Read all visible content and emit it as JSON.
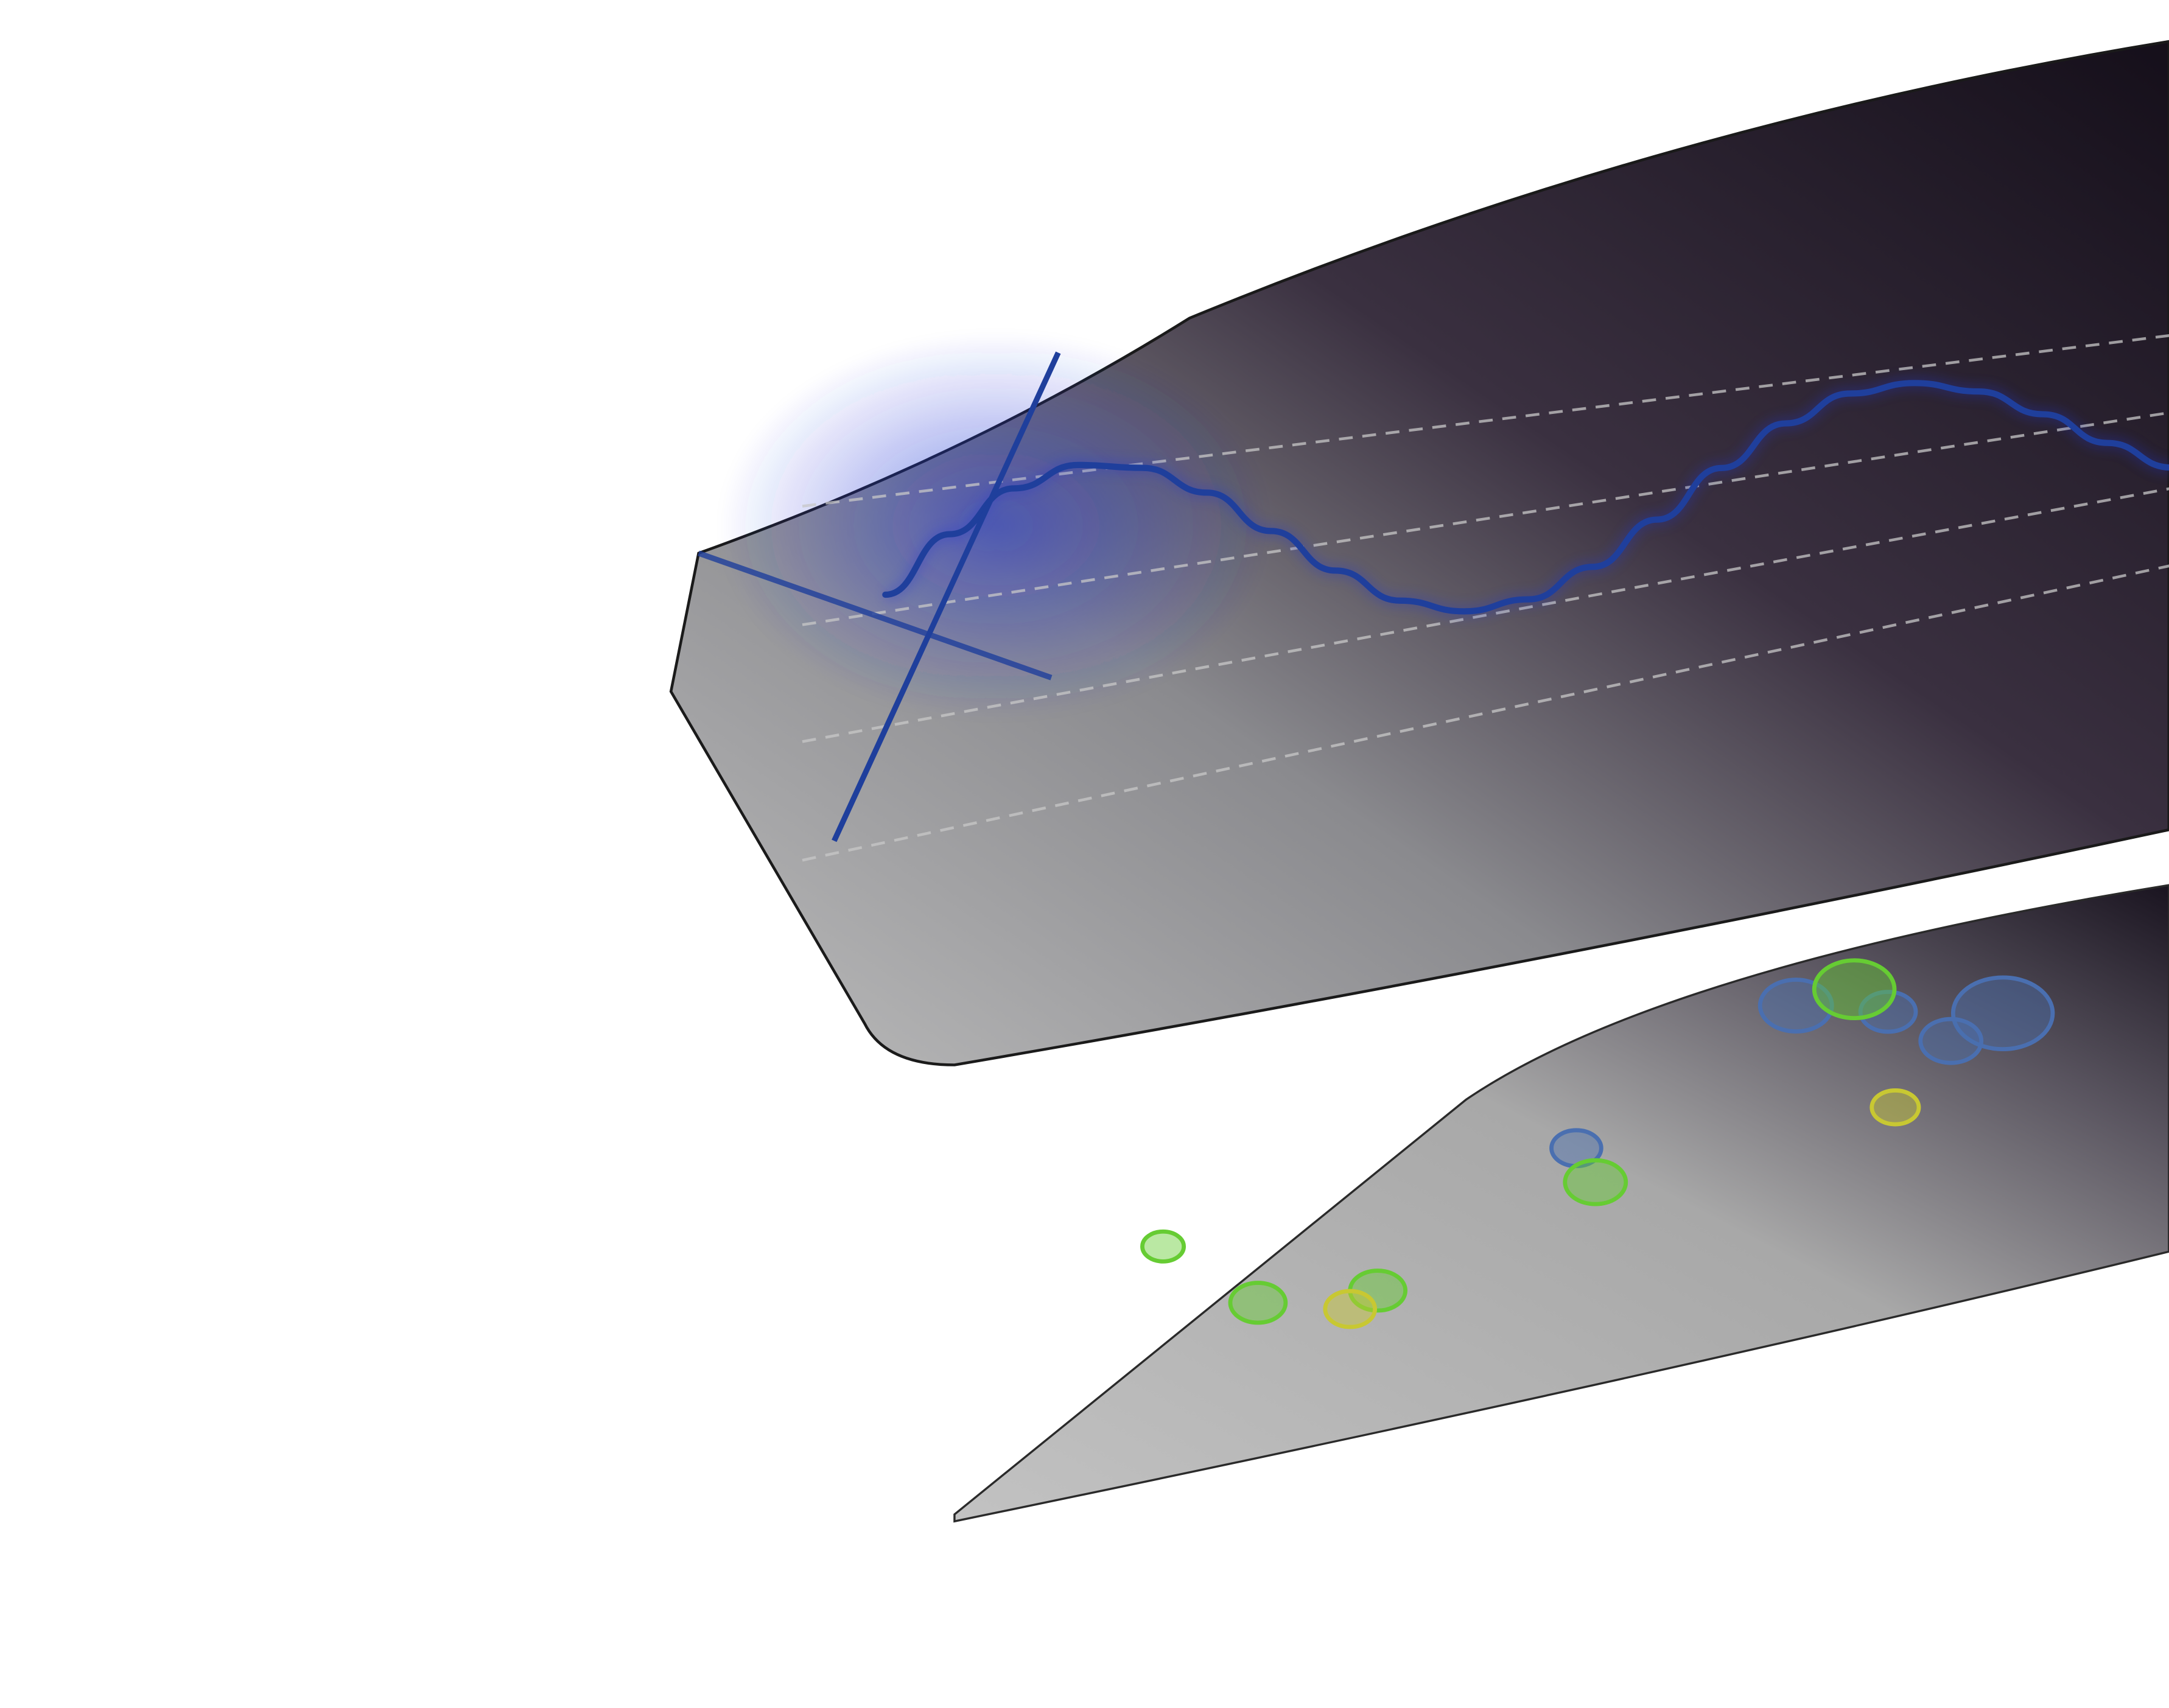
{
  "scene": {
    "description_free": true,
    "background": "#ffffff"
  },
  "colors": {
    "line": "#1f3f9c",
    "line_glow": "#2436d6",
    "grid": "#c8c8c8",
    "panel_dark": "#1a1420",
    "panel_light": "#b4b4b4",
    "bubble_blue": "#4a6fb0",
    "bubble_green": "#66cc33",
    "bubble_yellow": "#c8c832"
  },
  "chart_data": [
    {
      "type": "line",
      "title": "",
      "xlabel": "",
      "ylabel": "",
      "grid": true,
      "grid_style": "dashed",
      "series": [
        {
          "x": [
            0,
            0.5,
            1,
            1.5,
            2,
            2.5,
            3,
            3.5,
            4,
            4.5,
            5,
            5.5,
            6,
            6.5,
            7,
            7.5,
            8,
            8.5,
            9,
            9.5,
            10
          ],
          "y": [
            0.0,
            0.48,
            0.84,
            1.0,
            0.91,
            0.6,
            0.14,
            -0.35,
            -0.76,
            -0.98,
            -0.96,
            -0.71,
            -0.28,
            0.22,
            0.66,
            0.94,
            0.99,
            0.8,
            0.41,
            -0.08,
            -0.54
          ]
        }
      ]
    },
    {
      "type": "scatter",
      "title": "",
      "xlabel": "",
      "ylabel": "",
      "grid": false,
      "series": [
        {
          "color": "blue",
          "points": [
            {
              "x": 6.2,
              "y": 7.5,
              "size": 1.6
            },
            {
              "x": 7.1,
              "y": 6.9,
              "size": 1.0
            },
            {
              "x": 8.2,
              "y": 6.3,
              "size": 2.6
            },
            {
              "x": 7.8,
              "y": 5.9,
              "size": 1.2
            },
            {
              "x": 4.6,
              "y": 5.2,
              "size": 0.8
            }
          ]
        },
        {
          "color": "green",
          "points": [
            {
              "x": 6.7,
              "y": 7.6,
              "size": 1.9
            },
            {
              "x": 4.9,
              "y": 4.3,
              "size": 1.2
            },
            {
              "x": 2.1,
              "y": 3.1,
              "size": 1.0
            },
            {
              "x": 3.2,
              "y": 2.8,
              "size": 1.0
            },
            {
              "x": 1.0,
              "y": 4.9,
              "size": 0.5
            }
          ]
        },
        {
          "color": "yellow",
          "points": [
            {
              "x": 7.5,
              "y": 4.6,
              "size": 0.7
            },
            {
              "x": 3.0,
              "y": 2.5,
              "size": 0.8
            }
          ]
        }
      ]
    }
  ]
}
